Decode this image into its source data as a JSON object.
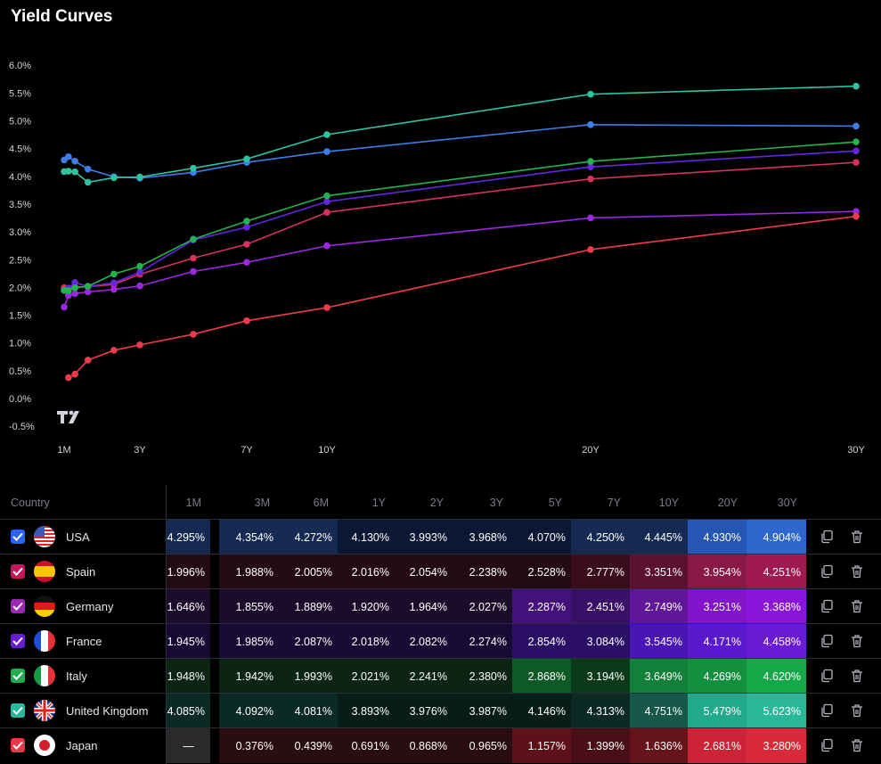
{
  "title": "Yield Curves",
  "table_header": {
    "country": "Country",
    "columns": [
      "1M",
      "3M",
      "6M",
      "1Y",
      "2Y",
      "3Y",
      "5Y",
      "7Y",
      "10Y",
      "20Y",
      "30Y"
    ]
  },
  "chart_data": {
    "type": "line",
    "title": "Yield Curves",
    "x_tick_labels": [
      "1M",
      "3Y",
      "7Y",
      "10Y",
      "20Y",
      "30Y"
    ],
    "y_tick_labels": [
      "6.0%",
      "5.5%",
      "5.0%",
      "4.5%",
      "4.0%",
      "3.5%",
      "3.0%",
      "2.5%",
      "2.0%",
      "1.5%",
      "1.0%",
      "0.5%",
      "0.0%",
      "-0.5%"
    ],
    "ylim": [
      -0.5,
      6.0
    ],
    "x_years": [
      0.0833,
      0.25,
      0.5,
      1,
      2,
      3,
      5,
      7,
      10,
      20,
      30
    ],
    "series": [
      {
        "name": "USA",
        "color": "#3d7ee6",
        "values": [
          4.295,
          4.354,
          4.272,
          4.13,
          3.993,
          3.968,
          4.07,
          4.25,
          4.445,
          4.93,
          4.904
        ]
      },
      {
        "name": "Spain",
        "color": "#d6305c",
        "values": [
          1.996,
          1.988,
          2.005,
          2.016,
          2.054,
          2.238,
          2.528,
          2.777,
          3.351,
          3.954,
          4.251
        ]
      },
      {
        "name": "Germany",
        "color": "#9c27e0",
        "values": [
          1.646,
          1.855,
          1.889,
          1.92,
          1.964,
          2.027,
          2.287,
          2.451,
          2.749,
          3.251,
          3.368
        ]
      },
      {
        "name": "France",
        "color": "#6624e0",
        "values": [
          1.945,
          1.985,
          2.087,
          2.018,
          2.082,
          2.274,
          2.854,
          3.084,
          3.545,
          4.171,
          4.458
        ]
      },
      {
        "name": "Italy",
        "color": "#22b34f",
        "values": [
          1.948,
          1.942,
          1.993,
          2.021,
          2.241,
          2.38,
          2.868,
          3.194,
          3.649,
          4.269,
          4.62
        ]
      },
      {
        "name": "United Kingdom",
        "color": "#2ec2a0",
        "values": [
          4.085,
          4.092,
          4.081,
          3.893,
          3.976,
          3.987,
          4.146,
          4.313,
          4.751,
          5.479,
          5.623
        ]
      },
      {
        "name": "Japan",
        "color": "#ec3c4c",
        "values": [
          null,
          0.376,
          0.439,
          0.691,
          0.868,
          0.965,
          1.157,
          1.399,
          1.636,
          2.681,
          3.28
        ]
      }
    ]
  },
  "rows": [
    {
      "name": "USA",
      "check_color": "#2962ff",
      "flag": "us-flag",
      "cells": [
        "4.295%",
        "4.354%",
        "4.272%",
        "4.130%",
        "3.993%",
        "3.968%",
        "4.070%",
        "4.250%",
        "4.445%",
        "4.930%",
        "4.904%"
      ],
      "bg": [
        "#142a52",
        "#142a52",
        "#142a52",
        "#0b1733",
        "#0b1733",
        "#0b1733",
        "#0b1733",
        "#142a52",
        "#142a52",
        "#2556b3",
        "#2d66cc"
      ]
    },
    {
      "name": "Spain",
      "check_color": "#c2185b",
      "flag": "es-flag",
      "cells": [
        "1.996%",
        "1.988%",
        "2.005%",
        "2.016%",
        "2.054%",
        "2.238%",
        "2.528%",
        "2.777%",
        "3.351%",
        "3.954%",
        "4.251%"
      ],
      "bg": [
        "#220b12",
        "#220b12",
        "#220b12",
        "#220b12",
        "#220b12",
        "#220b12",
        "#220b12",
        "#3a0d1c",
        "#5a1230",
        "#8a1846",
        "#9e1a50"
      ]
    },
    {
      "name": "Germany",
      "check_color": "#9c27b0",
      "flag": "de-flag",
      "cells": [
        "1.646%",
        "1.855%",
        "1.889%",
        "1.920%",
        "1.964%",
        "2.027%",
        "2.287%",
        "2.451%",
        "2.749%",
        "3.251%",
        "3.368%"
      ],
      "bg": [
        "#1c0c2c",
        "#1c0c2c",
        "#1c0c2c",
        "#1c0c2c",
        "#1c0c2c",
        "#1c0c2c",
        "#44117a",
        "#3a0f66",
        "#5f1699",
        "#8214cc",
        "#8a14d8"
      ]
    },
    {
      "name": "France",
      "check_color": "#6a1bd4",
      "flag": "fr-flag",
      "cells": [
        "1.945%",
        "1.985%",
        "2.087%",
        "2.018%",
        "2.082%",
        "2.274%",
        "2.854%",
        "3.084%",
        "3.545%",
        "4.171%",
        "4.458%"
      ],
      "bg": [
        "#170b33",
        "#170b33",
        "#170b33",
        "#170b33",
        "#170b33",
        "#170b33",
        "#2b0f66",
        "#2b0f66",
        "#4a16b3",
        "#5a19cc",
        "#6a1bd4"
      ]
    },
    {
      "name": "Italy",
      "check_color": "#22ab4f",
      "flag": "it-flag",
      "cells": [
        "1.948%",
        "1.942%",
        "1.993%",
        "2.021%",
        "2.241%",
        "2.380%",
        "2.868%",
        "3.194%",
        "3.649%",
        "4.269%",
        "4.620%"
      ],
      "bg": [
        "#0b2414",
        "#0b2414",
        "#0b2414",
        "#0b2414",
        "#0b2414",
        "#0b2414",
        "#0e5a26",
        "#0b3a1a",
        "#128038",
        "#12903e",
        "#16a848"
      ]
    },
    {
      "name": "United Kingdom",
      "check_color": "#26b89a",
      "flag": "gb-flag",
      "cells": [
        "4.085%",
        "4.092%",
        "4.081%",
        "3.893%",
        "3.976%",
        "3.987%",
        "4.146%",
        "4.313%",
        "4.751%",
        "5.479%",
        "5.623%"
      ],
      "bg": [
        "#0c2a24",
        "#0c2a24",
        "#0c2a24",
        "#081c18",
        "#081c18",
        "#081c18",
        "#081c18",
        "#0c2a24",
        "#16594a",
        "#22a88a",
        "#28b899"
      ]
    },
    {
      "name": "Japan",
      "check_color": "#e53947",
      "flag": "jp-flag",
      "cells": [
        "—",
        "0.376%",
        "0.439%",
        "0.691%",
        "0.868%",
        "0.965%",
        "1.157%",
        "1.399%",
        "1.636%",
        "2.681%",
        "3.280%"
      ],
      "bg": [
        "#2a2a2a",
        "#2a0d10",
        "#2a0d10",
        "#2a0d10",
        "#2a0d10",
        "#2a0d10",
        "#5c1218",
        "#481016",
        "#66141c",
        "#cc2436",
        "#d82a3a"
      ]
    }
  ],
  "actions": {
    "copy_icon": "copy-icon",
    "delete_icon": "trash-icon"
  }
}
